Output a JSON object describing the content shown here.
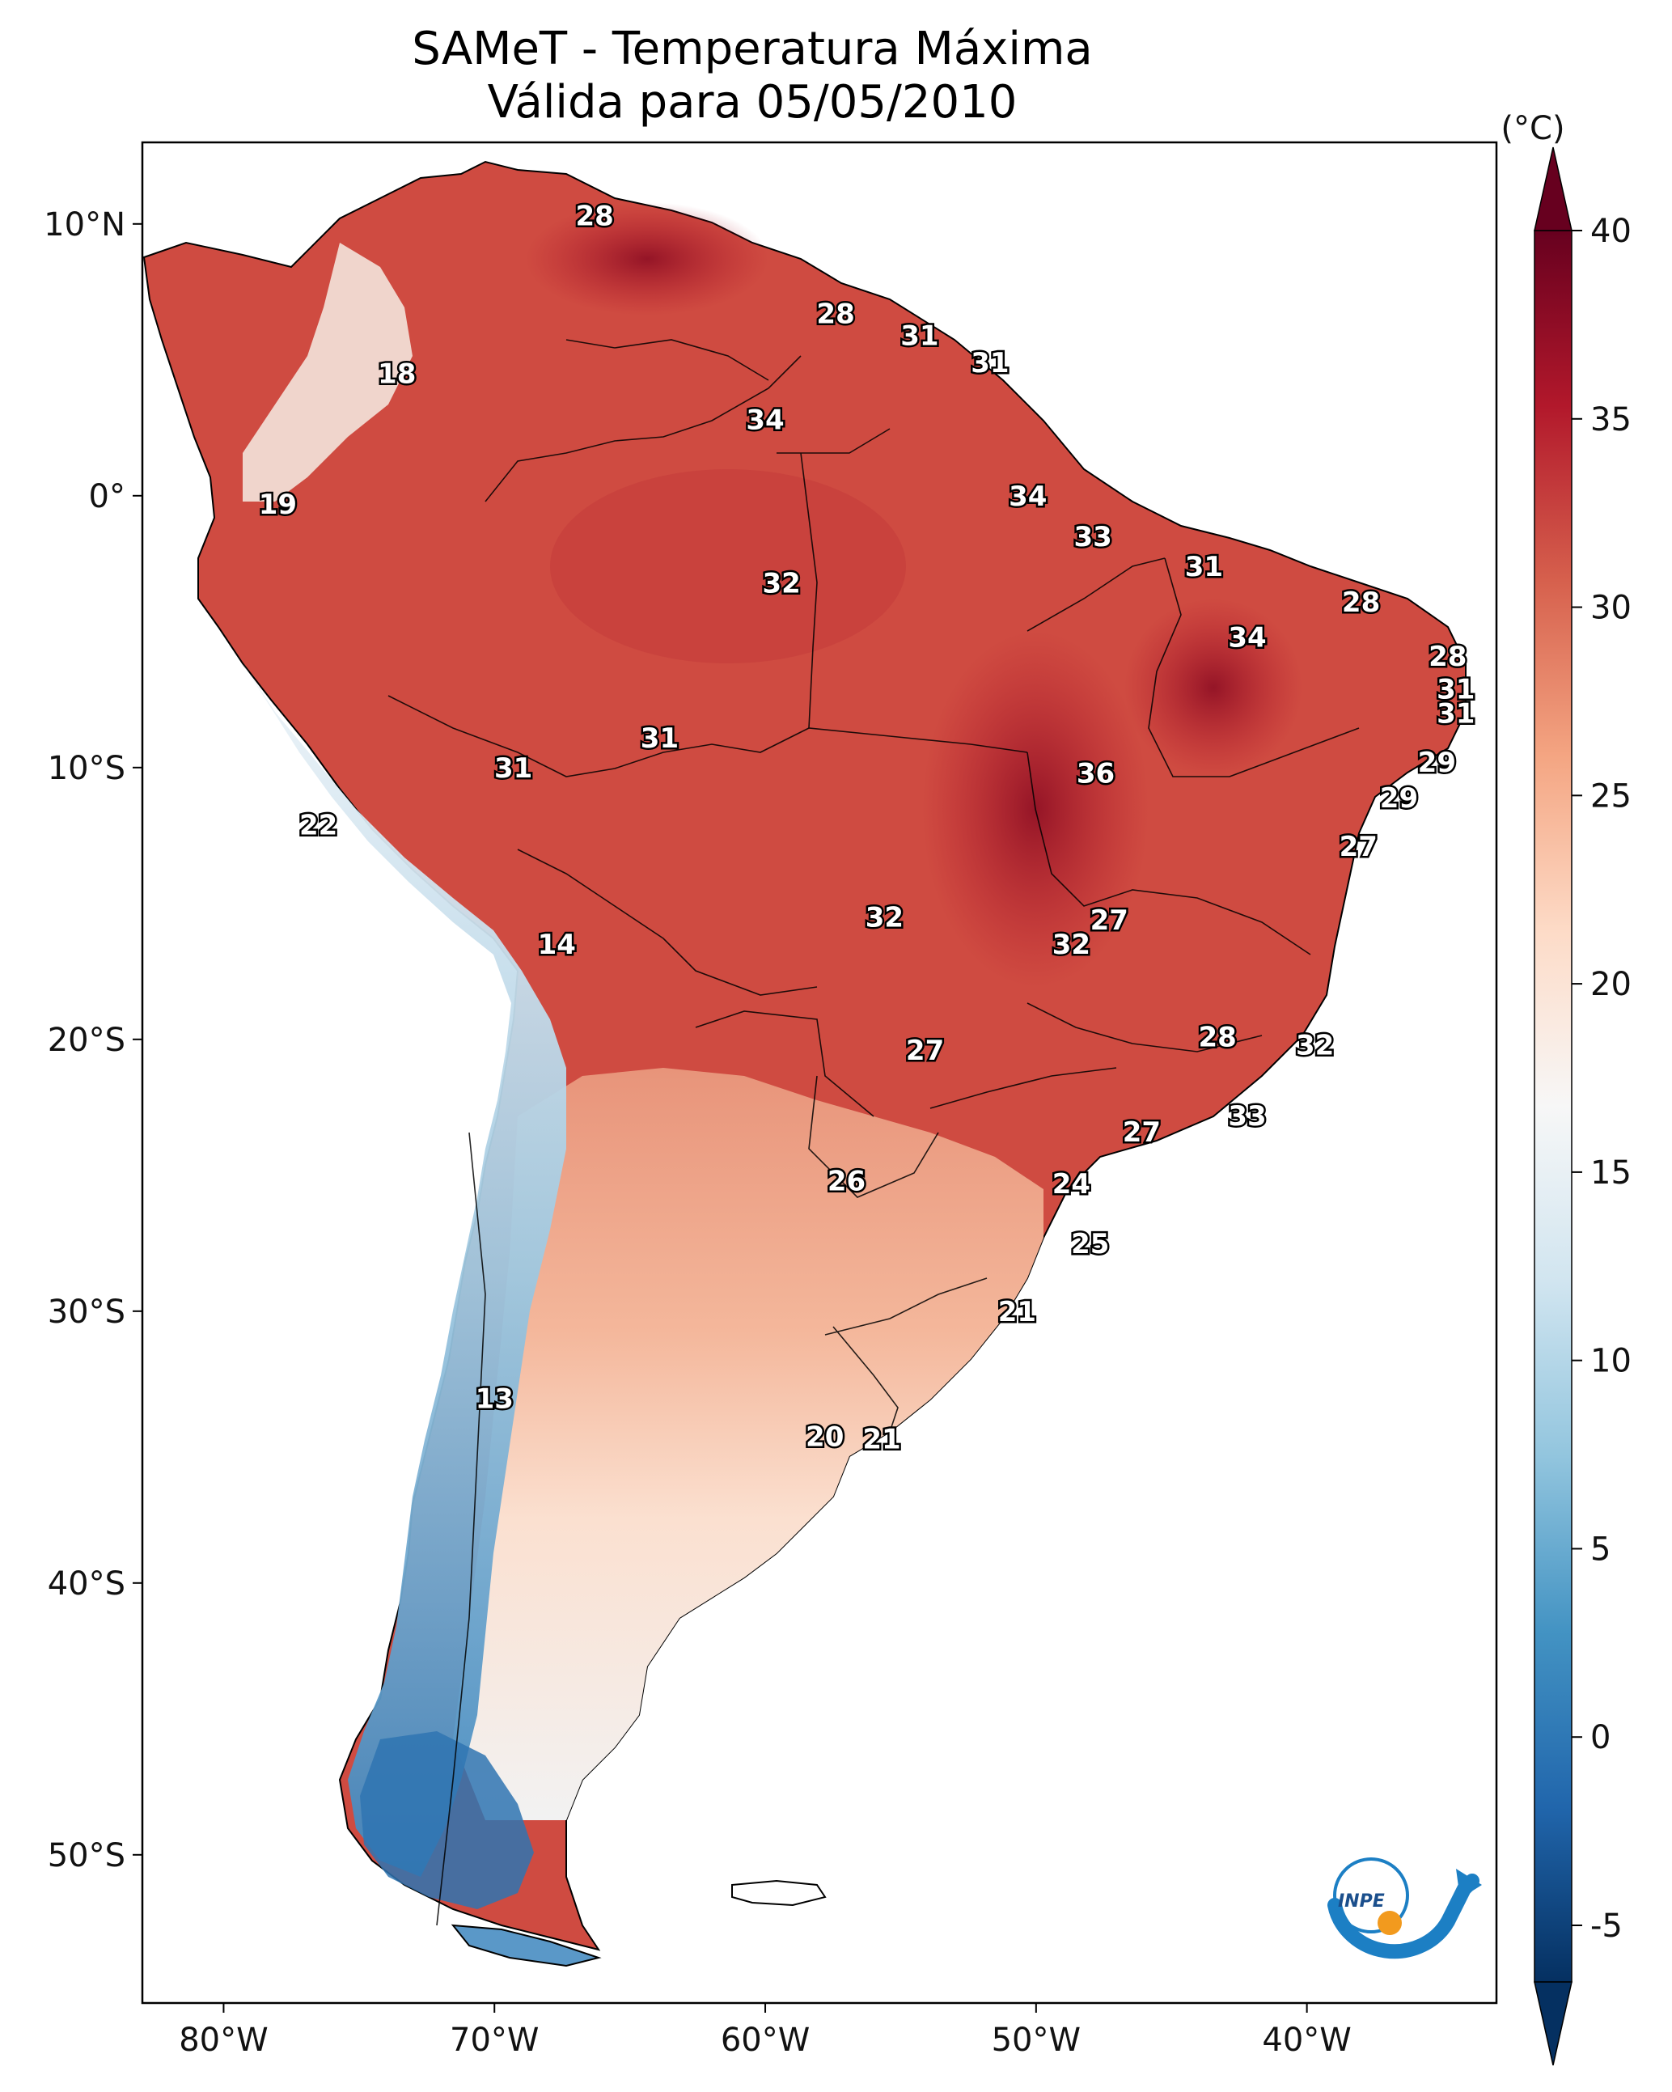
{
  "title": {
    "line1": "SAMeT - Temperatura Máxima",
    "line2": "Válida para 05/05/2010"
  },
  "axes": {
    "lat_labels": [
      "10°N",
      "0°",
      "10°S",
      "20°S",
      "30°S",
      "40°S",
      "50°S"
    ],
    "lon_labels": [
      "80°W",
      "70°W",
      "60°W",
      "50°W",
      "40°W"
    ]
  },
  "colorbar": {
    "unit": "(°C)",
    "ticks": [
      "40",
      "35",
      "30",
      "25",
      "20",
      "15",
      "10",
      "5",
      "0",
      "-5"
    ],
    "range": [
      -5,
      40
    ],
    "colors": [
      "#053061",
      "#2166ac",
      "#4393c3",
      "#92c5de",
      "#d1e5f0",
      "#f7f7f7",
      "#fddbc7",
      "#f4a582",
      "#d6604d",
      "#b2182b",
      "#67001f"
    ]
  },
  "labels": [
    {
      "text": "28",
      "lon": -66.3,
      "lat": 10.3
    },
    {
      "text": "18",
      "lon": -73.6,
      "lat": 4.5
    },
    {
      "text": "28",
      "lon": -57.4,
      "lat": 6.7
    },
    {
      "text": "31",
      "lon": -54.3,
      "lat": 5.9
    },
    {
      "text": "31",
      "lon": -51.7,
      "lat": 4.9
    },
    {
      "text": "34",
      "lon": -60.0,
      "lat": 2.8
    },
    {
      "text": "19",
      "lon": -78.0,
      "lat": -0.3
    },
    {
      "text": "34",
      "lon": -50.3,
      "lat": 0.0
    },
    {
      "text": "33",
      "lon": -47.9,
      "lat": -1.5
    },
    {
      "text": "31",
      "lon": -43.8,
      "lat": -2.6
    },
    {
      "text": "32",
      "lon": -59.4,
      "lat": -3.2
    },
    {
      "text": "28",
      "lon": -38.0,
      "lat": -3.9
    },
    {
      "text": "34",
      "lon": -42.2,
      "lat": -5.2
    },
    {
      "text": "28",
      "lon": -34.8,
      "lat": -5.9
    },
    {
      "text": "31",
      "lon": -34.5,
      "lat": -7.1
    },
    {
      "text": "31",
      "lon": -34.5,
      "lat": -8.0
    },
    {
      "text": "31",
      "lon": -63.9,
      "lat": -8.9
    },
    {
      "text": "31",
      "lon": -69.3,
      "lat": -10.0
    },
    {
      "text": "36",
      "lon": -47.8,
      "lat": -10.2
    },
    {
      "text": "29",
      "lon": -35.2,
      "lat": -9.8
    },
    {
      "text": "29",
      "lon": -36.6,
      "lat": -11.1
    },
    {
      "text": "22",
      "lon": -76.5,
      "lat": -12.1
    },
    {
      "text": "27",
      "lon": -38.1,
      "lat": -12.9
    },
    {
      "text": "14",
      "lon": -67.7,
      "lat": -16.5
    },
    {
      "text": "32",
      "lon": -55.6,
      "lat": -15.5
    },
    {
      "text": "27",
      "lon": -47.3,
      "lat": -15.6
    },
    {
      "text": "32",
      "lon": -48.7,
      "lat": -16.5
    },
    {
      "text": "28",
      "lon": -43.3,
      "lat": -19.9
    },
    {
      "text": "32",
      "lon": -39.7,
      "lat": -20.2
    },
    {
      "text": "27",
      "lon": -54.1,
      "lat": -20.4
    },
    {
      "text": "33",
      "lon": -42.2,
      "lat": -22.8
    },
    {
      "text": "27",
      "lon": -46.1,
      "lat": -23.4
    },
    {
      "text": "26",
      "lon": -57.0,
      "lat": -25.2
    },
    {
      "text": "24",
      "lon": -48.7,
      "lat": -25.3
    },
    {
      "text": "25",
      "lon": -48.0,
      "lat": -27.5
    },
    {
      "text": "21",
      "lon": -50.7,
      "lat": -30.0
    },
    {
      "text": "13",
      "lon": -70.0,
      "lat": -33.2
    },
    {
      "text": "20",
      "lon": -57.8,
      "lat": -34.6
    },
    {
      "text": "21",
      "lon": -55.7,
      "lat": -34.7
    }
  ],
  "logo": {
    "text": "INPE"
  }
}
